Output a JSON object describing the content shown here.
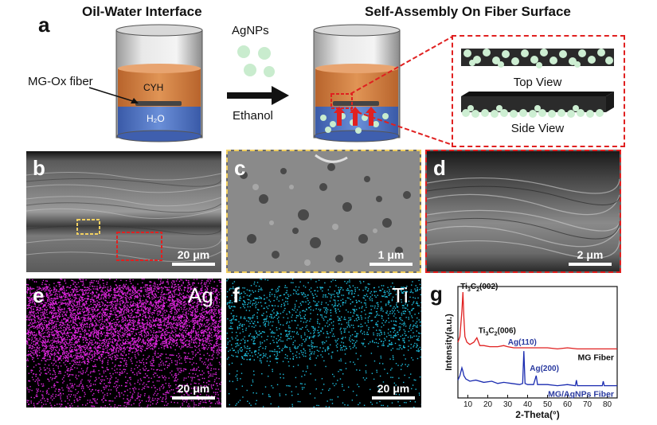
{
  "panel_a": {
    "letter": "a",
    "header_left": "Oil-Water Interface",
    "header_right": "Self-Assembly On Fiber Surface",
    "fiber_label": "MG-Ox fiber",
    "oil_label": "CYH",
    "water_label": "H₂O",
    "particles_label": "AgNPs",
    "solvent_label": "Ethanol",
    "top_view": "Top View",
    "side_view": "Side View"
  },
  "panel_b": {
    "letter": "b",
    "scale": "20 μm"
  },
  "panel_c": {
    "letter": "c",
    "scale": "1 μm"
  },
  "panel_d": {
    "letter": "d",
    "scale": "2 μm"
  },
  "panel_e": {
    "letter": "e",
    "element": "Ag",
    "scale": "20 μm"
  },
  "panel_f": {
    "letter": "f",
    "element": "Ti",
    "scale": "20 μm"
  },
  "panel_g": {
    "letter": "g"
  },
  "colors": {
    "oil": "#d9874a",
    "water": "#4f77c8",
    "particle": "#bfe6c4",
    "highlight_red": "#e02020",
    "highlight_yellow": "#f2d060",
    "ag_map": "#e026e0",
    "ti_map": "#1ec0e0",
    "mg_fiber_line": "#e02020",
    "mg_agnps_line": "#1a2bb0"
  },
  "chart_data": {
    "type": "line",
    "title": "",
    "xlabel": "2-Theta(°)",
    "ylabel": "Intensity(a.u.)",
    "xlim": [
      5,
      85
    ],
    "xticks": [
      10,
      20,
      30,
      40,
      50,
      60,
      70,
      80
    ],
    "series": [
      {
        "name": "MG Fiber",
        "color": "#e02020",
        "x": [
          5,
          6,
          7,
          7.5,
          8,
          8.5,
          9.5,
          11,
          13,
          14.5,
          16,
          18,
          21,
          25,
          28,
          30,
          33,
          36,
          40,
          45,
          50,
          55,
          60,
          65,
          70,
          75,
          80,
          85
        ],
        "y": [
          0.5,
          0.55,
          0.78,
          0.95,
          0.72,
          0.55,
          0.5,
          0.48,
          0.5,
          0.54,
          0.47,
          0.47,
          0.46,
          0.46,
          0.47,
          0.46,
          0.45,
          0.45,
          0.45,
          0.45,
          0.45,
          0.44,
          0.45,
          0.44,
          0.44,
          0.44,
          0.44,
          0.44
        ]
      },
      {
        "name": "MG/AgNPs Fiber",
        "color": "#1a2bb0",
        "x": [
          5,
          6,
          7,
          7.5,
          8,
          9,
          11,
          14,
          18,
          22,
          25,
          28,
          32,
          36,
          37.5,
          38.1,
          38.7,
          40,
          43,
          44.3,
          45,
          50,
          55,
          60,
          64,
          64.5,
          65,
          70,
          75,
          77.5,
          78,
          78.5,
          85
        ],
        "y": [
          0.16,
          0.2,
          0.27,
          0.24,
          0.2,
          0.17,
          0.15,
          0.16,
          0.14,
          0.15,
          0.13,
          0.14,
          0.13,
          0.12,
          0.13,
          0.42,
          0.13,
          0.12,
          0.12,
          0.2,
          0.12,
          0.12,
          0.11,
          0.12,
          0.11,
          0.16,
          0.11,
          0.11,
          0.11,
          0.11,
          0.15,
          0.11,
          0.11
        ]
      }
    ],
    "annotations": [
      {
        "text_html": "Ti<sub>3</sub>C<sub>2</sub>(002)",
        "text": "Ti3C2(002)",
        "x": 7.5,
        "y": 0.95,
        "color": "#111111"
      },
      {
        "text_html": "Ti<sub>3</sub>C<sub>2</sub>(006)",
        "text": "Ti3C2(006)",
        "x": 14.5,
        "y": 0.54,
        "color": "#111111"
      },
      {
        "text_html": "Ag(110)",
        "text": "Ag(110)",
        "x": 38.1,
        "y": 0.42,
        "color": "#2a3aa0"
      },
      {
        "text_html": "Ag(200)",
        "text": "Ag(200)",
        "x": 44.3,
        "y": 0.2,
        "color": "#2a3aa0"
      }
    ],
    "legend_labels": [
      "MG Fiber",
      "MG/AgNPs Fiber"
    ]
  }
}
